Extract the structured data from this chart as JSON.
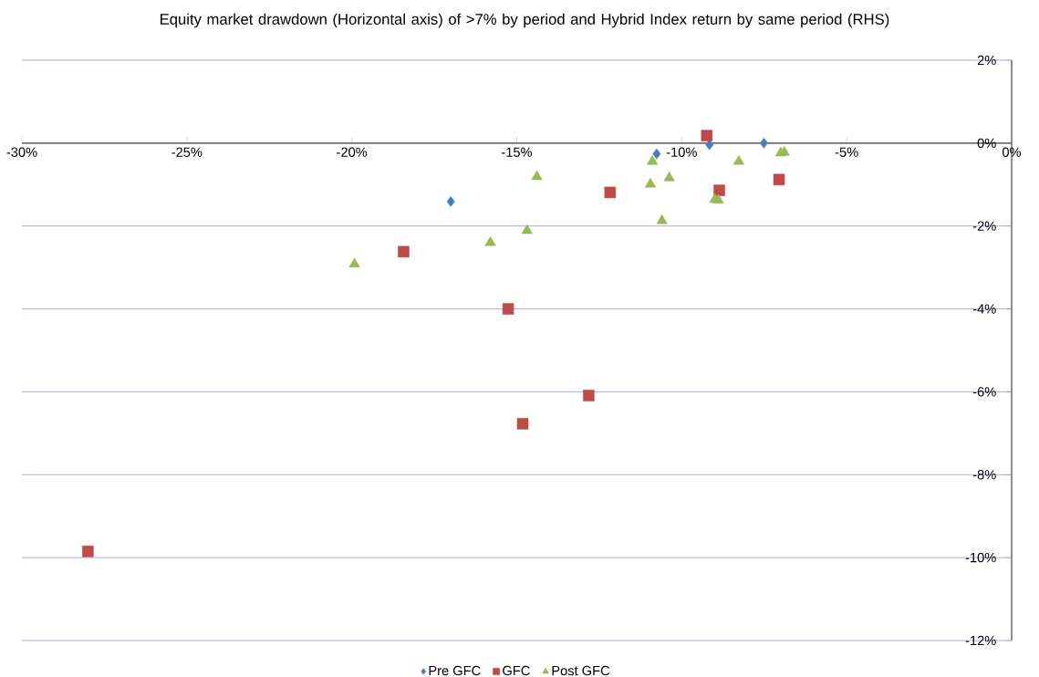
{
  "chart_data": {
    "type": "scatter",
    "title": "Equity market drawdown (Horizontal axis) of >7% by period and Hybrid Index return by same period (RHS)",
    "xlim": [
      -30,
      0
    ],
    "ylim": [
      -12,
      2
    ],
    "xticks": [
      {
        "value": -30,
        "label": "-30%"
      },
      {
        "value": -25,
        "label": "-25%"
      },
      {
        "value": -20,
        "label": "-20%"
      },
      {
        "value": -15,
        "label": "-15%"
      },
      {
        "value": -10,
        "label": "-10%"
      },
      {
        "value": -5,
        "label": "-5%"
      },
      {
        "value": 0,
        "label": "0%"
      }
    ],
    "yticks": [
      {
        "value": -12,
        "label": "-12%"
      },
      {
        "value": -10,
        "label": "-10%"
      },
      {
        "value": -8,
        "label": "-8%"
      },
      {
        "value": -6,
        "label": "-6%"
      },
      {
        "value": -4,
        "label": "-4%"
      },
      {
        "value": -2,
        "label": "-2%"
      },
      {
        "value": 0,
        "label": "0%"
      },
      {
        "value": 2,
        "label": "2%"
      }
    ],
    "grid": "y",
    "legend": "bottom",
    "series": [
      {
        "name": "Pre GFC",
        "color": "#4a7ebb",
        "marker": "diamond",
        "x": [
          -17.0,
          -10.76,
          -9.16,
          -7.51
        ],
        "values": [
          -1.41,
          -0.26,
          -0.04,
          0.0
        ]
      },
      {
        "name": "GFC",
        "color": "#be4b48",
        "marker": "square",
        "x": [
          -28.0,
          -18.43,
          -15.26,
          -14.82,
          -12.82,
          -12.17,
          -9.24,
          -8.86,
          -7.05
        ],
        "values": [
          -9.85,
          -2.62,
          -4.0,
          -6.77,
          -6.09,
          -1.19,
          0.18,
          -1.14,
          -0.88
        ]
      },
      {
        "name": "Post GFC",
        "color": "#98b954",
        "marker": "triangle",
        "x": [
          -19.92,
          -15.8,
          -14.69,
          -14.39,
          -10.89,
          -10.95,
          -10.38,
          -10.6,
          -9.0,
          -8.89,
          -8.27,
          -7.0,
          -6.89
        ],
        "values": [
          -2.92,
          -2.4,
          -2.11,
          -0.81,
          -0.44,
          -0.99,
          -0.84,
          -1.87,
          -1.36,
          -1.38,
          -0.44,
          -0.24,
          -0.22
        ]
      }
    ]
  }
}
